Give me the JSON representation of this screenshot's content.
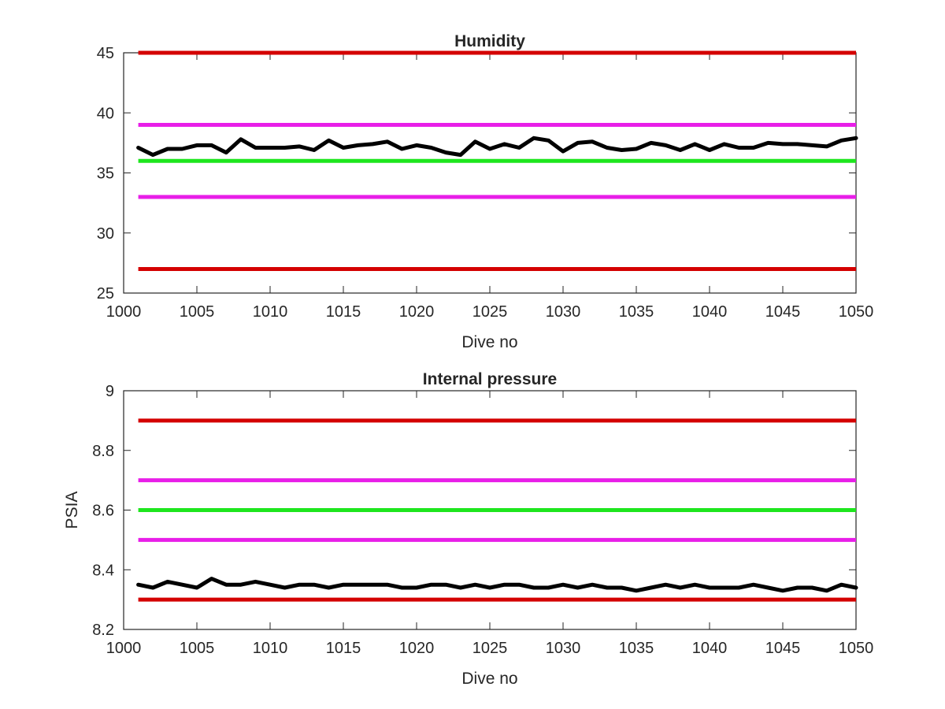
{
  "chart_data": [
    {
      "type": "line",
      "title": "Humidity",
      "xlabel": "Dive no",
      "ylabel": "",
      "xlim": [
        1000,
        1050
      ],
      "ylim": [
        25,
        45
      ],
      "xticks": [
        1000,
        1005,
        1010,
        1015,
        1020,
        1025,
        1030,
        1035,
        1040,
        1045,
        1050
      ],
      "xtick_labels": [
        "1000",
        "1005",
        "1010",
        "1015",
        "1020",
        "1025",
        "1030",
        "1035",
        "1040",
        "1045",
        "1050"
      ],
      "yticks": [
        25,
        30,
        35,
        40,
        45
      ],
      "ytick_labels": [
        "25",
        "30",
        "35",
        "40",
        "45"
      ],
      "grid": false,
      "reference_lines": [
        {
          "y": 45,
          "color": "#d40000",
          "x_range": [
            1001,
            1050
          ]
        },
        {
          "y": 39,
          "color": "#e81ee8",
          "x_range": [
            1001,
            1050
          ]
        },
        {
          "y": 36,
          "color": "#1ee61e",
          "x_range": [
            1001,
            1050
          ]
        },
        {
          "y": 33,
          "color": "#e81ee8",
          "x_range": [
            1001,
            1050
          ]
        },
        {
          "y": 27,
          "color": "#d40000",
          "x_range": [
            1001,
            1050
          ]
        }
      ],
      "series": [
        {
          "color": "#000000",
          "x": [
            1001,
            1002,
            1003,
            1004,
            1005,
            1006,
            1007,
            1008,
            1009,
            1010,
            1011,
            1012,
            1013,
            1014,
            1015,
            1016,
            1017,
            1018,
            1019,
            1020,
            1021,
            1022,
            1023,
            1024,
            1025,
            1026,
            1027,
            1028,
            1029,
            1030,
            1031,
            1032,
            1033,
            1034,
            1035,
            1036,
            1037,
            1038,
            1039,
            1040,
            1041,
            1042,
            1043,
            1044,
            1045,
            1046,
            1047,
            1048,
            1049,
            1050
          ],
          "y": [
            37.1,
            36.5,
            37.0,
            37.0,
            37.3,
            37.3,
            36.7,
            37.8,
            37.1,
            37.1,
            37.1,
            37.2,
            36.9,
            37.7,
            37.1,
            37.3,
            37.4,
            37.6,
            37.0,
            37.3,
            37.1,
            36.7,
            36.5,
            37.6,
            37.0,
            37.4,
            37.1,
            37.9,
            37.7,
            36.8,
            37.5,
            37.6,
            37.1,
            36.9,
            37.0,
            37.5,
            37.3,
            36.9,
            37.4,
            36.9,
            37.4,
            37.1,
            37.1,
            37.5,
            37.4,
            37.4,
            37.3,
            37.2,
            37.7,
            37.9
          ]
        }
      ]
    },
    {
      "type": "line",
      "title": "Internal pressure",
      "xlabel": "Dive no",
      "ylabel": "PSIA",
      "xlim": [
        1000,
        1050
      ],
      "ylim": [
        8.2,
        9.0
      ],
      "xticks": [
        1000,
        1005,
        1010,
        1015,
        1020,
        1025,
        1030,
        1035,
        1040,
        1045,
        1050
      ],
      "xtick_labels": [
        "1000",
        "1005",
        "1010",
        "1015",
        "1020",
        "1025",
        "1030",
        "1035",
        "1040",
        "1045",
        "1050"
      ],
      "yticks": [
        8.2,
        8.4,
        8.6,
        8.8,
        9.0
      ],
      "ytick_labels": [
        "8.2",
        "8.4",
        "8.6",
        "8.8",
        "9"
      ],
      "grid": false,
      "reference_lines": [
        {
          "y": 8.9,
          "color": "#d40000",
          "x_range": [
            1001,
            1050
          ]
        },
        {
          "y": 8.7,
          "color": "#e81ee8",
          "x_range": [
            1001,
            1050
          ]
        },
        {
          "y": 8.6,
          "color": "#1ee61e",
          "x_range": [
            1001,
            1050
          ]
        },
        {
          "y": 8.5,
          "color": "#e81ee8",
          "x_range": [
            1001,
            1050
          ]
        },
        {
          "y": 8.3,
          "color": "#d40000",
          "x_range": [
            1001,
            1050
          ]
        }
      ],
      "series": [
        {
          "color": "#000000",
          "x": [
            1001,
            1002,
            1003,
            1004,
            1005,
            1006,
            1007,
            1008,
            1009,
            1010,
            1011,
            1012,
            1013,
            1014,
            1015,
            1016,
            1017,
            1018,
            1019,
            1020,
            1021,
            1022,
            1023,
            1024,
            1025,
            1026,
            1027,
            1028,
            1029,
            1030,
            1031,
            1032,
            1033,
            1034,
            1035,
            1036,
            1037,
            1038,
            1039,
            1040,
            1041,
            1042,
            1043,
            1044,
            1045,
            1046,
            1047,
            1048,
            1049,
            1050
          ],
          "y": [
            8.35,
            8.34,
            8.36,
            8.35,
            8.34,
            8.37,
            8.35,
            8.35,
            8.36,
            8.35,
            8.34,
            8.35,
            8.35,
            8.34,
            8.35,
            8.35,
            8.35,
            8.35,
            8.34,
            8.34,
            8.35,
            8.35,
            8.34,
            8.35,
            8.34,
            8.35,
            8.35,
            8.34,
            8.34,
            8.35,
            8.34,
            8.35,
            8.34,
            8.34,
            8.33,
            8.34,
            8.35,
            8.34,
            8.35,
            8.34,
            8.34,
            8.34,
            8.35,
            8.34,
            8.33,
            8.34,
            8.34,
            8.33,
            8.35,
            8.34
          ]
        }
      ]
    }
  ]
}
